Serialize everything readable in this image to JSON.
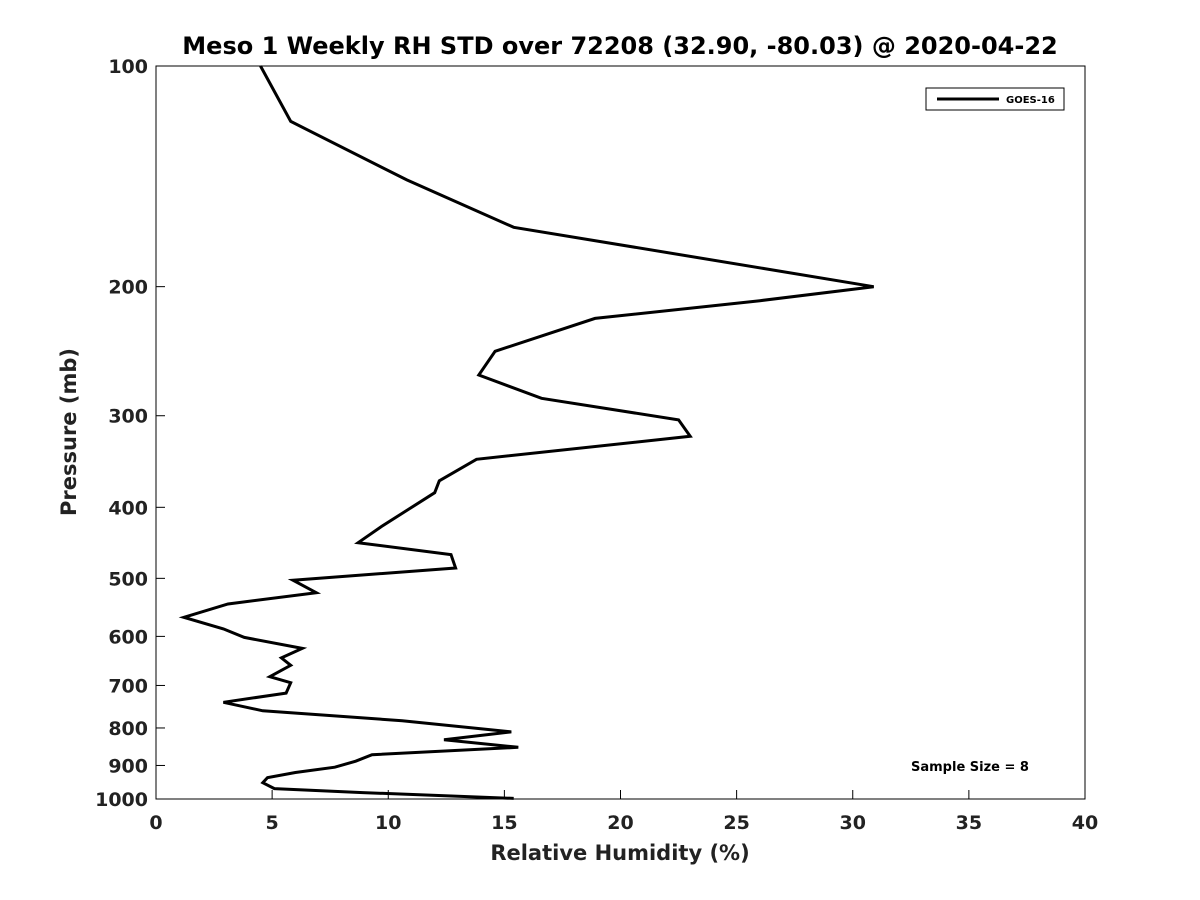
{
  "chart_data": {
    "type": "line",
    "title": "Meso 1 Weekly RH STD over 72208 (32.90, -80.03) @ 2020-04-22",
    "xlabel": "Relative Humidity (%)",
    "ylabel": "Pressure (mb)",
    "xlim": [
      0,
      40
    ],
    "ylim": [
      1000,
      100
    ],
    "y_scale": "log",
    "y_reversed": true,
    "grid": false,
    "legend_position": "top-right",
    "x_ticks": [
      0,
      5,
      10,
      15,
      20,
      25,
      30,
      35,
      40
    ],
    "y_ticks": [
      100,
      200,
      300,
      400,
      500,
      600,
      700,
      800,
      900,
      1000
    ],
    "annotation": "Sample Size = 8",
    "series": [
      {
        "name": "GOES-16",
        "color": "#000000",
        "points": [
          [
            4.5,
            100
          ],
          [
            5.8,
            119
          ],
          [
            10.8,
            143
          ],
          [
            15.4,
            166
          ],
          [
            26.2,
            189
          ],
          [
            30.9,
            200
          ],
          [
            26.0,
            209
          ],
          [
            18.9,
            221
          ],
          [
            14.6,
            245
          ],
          [
            13.9,
            264
          ],
          [
            16.6,
            284
          ],
          [
            22.5,
            304
          ],
          [
            23.0,
            320
          ],
          [
            13.8,
            344
          ],
          [
            12.2,
            368
          ],
          [
            12.0,
            382
          ],
          [
            10.9,
            402
          ],
          [
            9.7,
            425
          ],
          [
            8.7,
            447
          ],
          [
            12.7,
            464
          ],
          [
            12.9,
            484
          ],
          [
            5.9,
            503
          ],
          [
            6.9,
            523
          ],
          [
            3.1,
            542
          ],
          [
            1.2,
            565
          ],
          [
            2.9,
            586
          ],
          [
            3.8,
            602
          ],
          [
            6.3,
            623
          ],
          [
            5.4,
            642
          ],
          [
            5.8,
            657
          ],
          [
            4.9,
            681
          ],
          [
            5.8,
            694
          ],
          [
            5.6,
            717
          ],
          [
            2.9,
            738
          ],
          [
            4.6,
            758
          ],
          [
            10.6,
            782
          ],
          [
            15.3,
            810
          ],
          [
            12.4,
            830
          ],
          [
            15.6,
            850
          ],
          [
            9.3,
            870
          ],
          [
            8.6,
            888
          ],
          [
            7.7,
            905
          ],
          [
            6.0,
            920
          ],
          [
            4.8,
            935
          ],
          [
            4.6,
            950
          ],
          [
            5.1,
            968
          ],
          [
            8.9,
            980
          ],
          [
            15.4,
            998
          ]
        ]
      }
    ]
  }
}
